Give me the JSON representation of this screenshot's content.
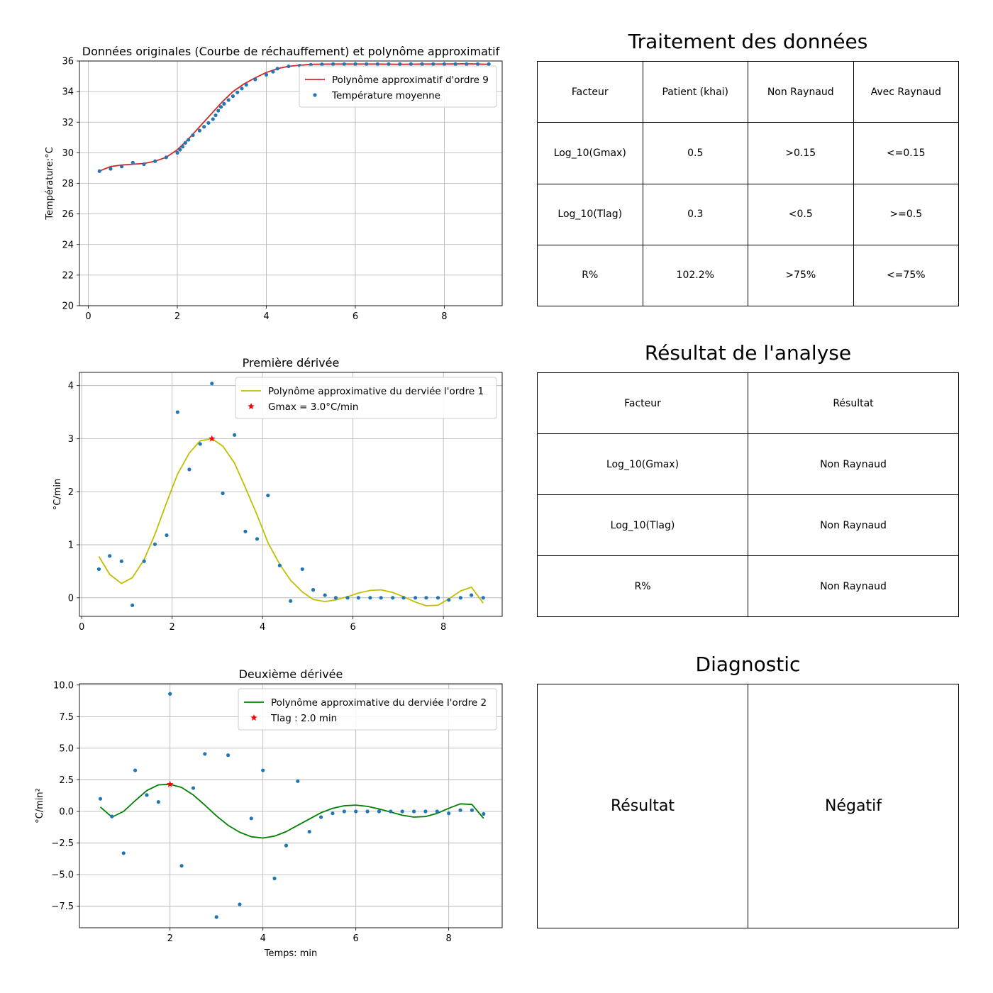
{
  "chart_data": [
    {
      "type": "line",
      "title": "Données originales (Courbe de réchauffement) et polynôme approximatif",
      "xlabel": "",
      "ylabel": "Température:°C",
      "xlim": [
        -0.2,
        9.3
      ],
      "ylim": [
        20,
        36
      ],
      "xticks": [
        0,
        2,
        4,
        6,
        8
      ],
      "xtick_labels": [
        "0",
        "2",
        "4",
        "6",
        "8"
      ],
      "yticks": [
        20,
        22,
        24,
        26,
        28,
        30,
        32,
        34,
        36
      ],
      "ytick_labels": [
        "20",
        "22",
        "24",
        "26",
        "28",
        "30",
        "32",
        "34",
        "36"
      ],
      "grid": true,
      "legend_position": "top-right",
      "series": [
        {
          "name": "Polynôme approximatif d'ordre 9",
          "kind": "line",
          "color": "#d62728",
          "x": [
            0.25,
            0.5,
            0.75,
            1.0,
            1.25,
            1.5,
            1.75,
            2.0,
            2.25,
            2.5,
            2.75,
            3.0,
            3.25,
            3.5,
            3.75,
            4.0,
            4.25,
            4.5,
            4.75,
            5.0,
            5.5,
            6.0,
            6.5,
            7.0,
            7.5,
            8.0,
            8.5,
            9.0
          ],
          "y": [
            28.8,
            29.1,
            29.2,
            29.25,
            29.3,
            29.45,
            29.7,
            30.2,
            30.9,
            31.7,
            32.5,
            33.3,
            34.0,
            34.5,
            34.9,
            35.25,
            35.5,
            35.65,
            35.72,
            35.78,
            35.8,
            35.8,
            35.8,
            35.78,
            35.8,
            35.8,
            35.82,
            35.78
          ]
        },
        {
          "name": "Température moyenne",
          "kind": "scatter",
          "color": "#1f77b4",
          "x": [
            0.25,
            0.5,
            0.75,
            1.0,
            1.25,
            1.5,
            1.75,
            2.0,
            2.06,
            2.12,
            2.18,
            2.25,
            2.35,
            2.5,
            2.6,
            2.7,
            2.8,
            2.86,
            2.92,
            2.98,
            3.05,
            3.15,
            3.25,
            3.35,
            3.45,
            3.55,
            3.75,
            4.0,
            4.15,
            4.25,
            4.5,
            4.75,
            5.0,
            5.25,
            5.5,
            5.75,
            6.0,
            6.25,
            6.5,
            6.75,
            7.0,
            7.25,
            7.5,
            7.75,
            8.0,
            8.25,
            8.5,
            8.75,
            9.0
          ],
          "y": [
            28.8,
            28.95,
            29.1,
            29.35,
            29.25,
            29.45,
            29.7,
            30.0,
            30.2,
            30.4,
            30.65,
            30.85,
            31.15,
            31.45,
            31.7,
            31.95,
            32.2,
            32.45,
            32.75,
            33.0,
            33.2,
            33.45,
            33.7,
            33.95,
            34.2,
            34.45,
            34.8,
            35.1,
            35.3,
            35.5,
            35.65,
            35.7,
            35.75,
            35.78,
            35.8,
            35.8,
            35.8,
            35.8,
            35.8,
            35.8,
            35.8,
            35.8,
            35.8,
            35.8,
            35.8,
            35.8,
            35.8,
            35.8,
            35.8
          ]
        }
      ]
    },
    {
      "type": "line",
      "title": "Première dérivée",
      "xlabel": "",
      "ylabel": "°C/min",
      "xlim": [
        -0.05,
        9.3
      ],
      "ylim": [
        -0.35,
        4.25
      ],
      "xticks": [
        0,
        2,
        4,
        6,
        8
      ],
      "xtick_labels": [
        "0",
        "2",
        "4",
        "6",
        "8"
      ],
      "yticks": [
        0,
        1,
        2,
        3,
        4
      ],
      "ytick_labels": [
        "0",
        "1",
        "2",
        "3",
        "4"
      ],
      "grid": true,
      "legend_position": "top-right",
      "series": [
        {
          "name": "Polynôme approximative du derviée l'ordre 1",
          "kind": "line",
          "color": "#bfbf00",
          "x": [
            0.38,
            0.62,
            0.88,
            1.12,
            1.38,
            1.62,
            1.88,
            2.12,
            2.38,
            2.62,
            2.88,
            3.12,
            3.38,
            3.62,
            3.88,
            4.12,
            4.38,
            4.62,
            4.88,
            5.12,
            5.38,
            5.62,
            5.88,
            6.12,
            6.38,
            6.62,
            6.88,
            7.12,
            7.38,
            7.62,
            7.88,
            8.12,
            8.38,
            8.62,
            8.88
          ],
          "y": [
            0.78,
            0.44,
            0.27,
            0.38,
            0.72,
            1.2,
            1.8,
            2.33,
            2.73,
            2.96,
            3.0,
            2.86,
            2.54,
            2.08,
            1.56,
            1.04,
            0.63,
            0.33,
            0.11,
            -0.03,
            -0.07,
            -0.04,
            0.02,
            0.09,
            0.14,
            0.15,
            0.1,
            0.02,
            -0.08,
            -0.15,
            -0.14,
            -0.02,
            0.13,
            0.2,
            -0.1
          ]
        },
        {
          "name": "",
          "kind": "scatter",
          "color": "#1f77b4",
          "x": [
            0.38,
            0.62,
            0.88,
            1.12,
            1.38,
            1.62,
            1.88,
            2.12,
            2.38,
            2.62,
            2.88,
            3.12,
            3.38,
            3.62,
            3.88,
            4.12,
            4.38,
            4.62,
            4.88,
            5.12,
            5.38,
            5.62,
            5.88,
            6.12,
            6.38,
            6.62,
            6.88,
            7.12,
            7.38,
            7.62,
            7.88,
            8.12,
            8.38,
            8.62,
            8.88
          ],
          "y": [
            0.54,
            0.79,
            0.69,
            -0.14,
            0.69,
            1.01,
            1.18,
            3.5,
            2.42,
            2.9,
            4.04,
            1.97,
            3.07,
            1.25,
            1.11,
            1.93,
            0.61,
            -0.06,
            0.54,
            0.15,
            0.05,
            0.0,
            0.0,
            0.0,
            0.0,
            0.0,
            0.0,
            0.0,
            0.0,
            0.0,
            0.0,
            -0.04,
            0.0,
            0.05,
            0.0
          ]
        },
        {
          "name": "Gmax = 3.0°C/min",
          "kind": "star",
          "color": "#ff0000",
          "x": [
            2.88
          ],
          "y": [
            3.0
          ]
        }
      ]
    },
    {
      "type": "line",
      "title": "Deuxième dérivée",
      "xlabel": "Temps: min",
      "ylabel": "°C/min²",
      "xlim": [
        0.05,
        9.15
      ],
      "ylim": [
        -9.2,
        10.1
      ],
      "xticks": [
        2,
        4,
        6,
        8
      ],
      "xtick_labels": [
        "2",
        "4",
        "6",
        "8"
      ],
      "yticks": [
        -7.5,
        -5.0,
        -2.5,
        0.0,
        2.5,
        5.0,
        7.5,
        10.0
      ],
      "ytick_labels": [
        "−7.5",
        "−5.0",
        "−2.5",
        "0.0",
        "2.5",
        "5.0",
        "7.5",
        "10.0"
      ],
      "grid": true,
      "legend_position": "top-right",
      "series": [
        {
          "name": "Polynôme approximative du derviée l'ordre 2",
          "kind": "line",
          "color": "#008000",
          "x": [
            0.5,
            0.75,
            1.0,
            1.25,
            1.5,
            1.75,
            2.0,
            2.25,
            2.5,
            2.75,
            3.0,
            3.25,
            3.5,
            3.75,
            4.0,
            4.25,
            4.5,
            4.75,
            5.0,
            5.25,
            5.5,
            5.75,
            6.0,
            6.25,
            6.5,
            6.75,
            7.0,
            7.25,
            7.5,
            7.75,
            8.0,
            8.25,
            8.5,
            8.75
          ],
          "y": [
            0.35,
            -0.45,
            0.0,
            0.85,
            1.65,
            2.1,
            2.15,
            1.9,
            1.3,
            0.5,
            -0.35,
            -1.1,
            -1.65,
            -2.0,
            -2.1,
            -1.95,
            -1.6,
            -1.1,
            -0.6,
            -0.1,
            0.25,
            0.45,
            0.5,
            0.4,
            0.2,
            -0.05,
            -0.3,
            -0.45,
            -0.4,
            -0.15,
            0.25,
            0.6,
            0.55,
            -0.55
          ]
        },
        {
          "name": "",
          "kind": "scatter",
          "color": "#1f77b4",
          "x": [
            0.5,
            0.75,
            1.0,
            1.25,
            1.5,
            1.75,
            2.0,
            2.25,
            2.5,
            2.75,
            3.0,
            3.25,
            3.5,
            3.75,
            4.0,
            4.25,
            4.5,
            4.75,
            5.0,
            5.25,
            5.5,
            5.75,
            6.0,
            6.25,
            6.5,
            6.75,
            7.0,
            7.25,
            7.5,
            7.75,
            8.0,
            8.25,
            8.5,
            8.75
          ],
          "y": [
            1.0,
            -0.4,
            -3.3,
            3.25,
            1.3,
            0.75,
            9.3,
            -4.3,
            1.85,
            4.55,
            -8.35,
            4.45,
            -7.35,
            -0.55,
            3.25,
            -5.3,
            -2.7,
            2.4,
            -1.6,
            -0.45,
            -0.15,
            0.0,
            0.0,
            0.0,
            0.0,
            0.0,
            0.0,
            0.0,
            0.0,
            0.0,
            -0.15,
            0.1,
            0.1,
            -0.2
          ]
        },
        {
          "name": "Tlag : 2.0 min",
          "kind": "star",
          "color": "#ff0000",
          "x": [
            2.0
          ],
          "y": [
            2.15
          ]
        }
      ]
    }
  ],
  "tables": {
    "traitement": {
      "title": "Traitement des données",
      "headers": [
        "Facteur",
        "Patient (khai)",
        "Non Raynaud",
        "Avec Raynaud"
      ],
      "rows": [
        [
          "Log_10(Gmax)",
          "0.5",
          ">0.15",
          "<=0.15"
        ],
        [
          "Log_10(Tlag)",
          "0.3",
          "<0.5",
          ">=0.5"
        ],
        [
          "R%",
          "102.2%",
          ">75%",
          "<=75%"
        ]
      ]
    },
    "resultat": {
      "title": "Résultat de l'analyse",
      "headers": [
        "Facteur",
        "Résultat"
      ],
      "rows": [
        [
          "Log_10(Gmax)",
          "Non Raynaud"
        ],
        [
          "Log_10(Tlag)",
          "Non Raynaud"
        ],
        [
          "R%",
          "Non Raynaud"
        ]
      ]
    },
    "diagnostic": {
      "title": "Diagnostic",
      "label": "Résultat",
      "value": "Négatif"
    }
  }
}
